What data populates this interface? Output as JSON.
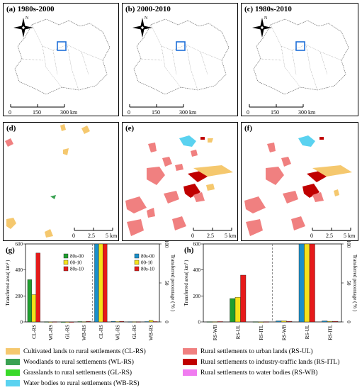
{
  "maps_top": [
    {
      "label": "(a) 1980s-2000",
      "north": "N",
      "scale": [
        "0",
        "150",
        "300 km"
      ],
      "show_compass": true
    },
    {
      "label": "(b) 2000-2010",
      "north": "N",
      "scale": [
        "0",
        "150",
        "300 km"
      ],
      "show_compass": true
    },
    {
      "label": "(c) 1980s-2010",
      "north": "N",
      "scale": [
        "0",
        "150",
        "300 km"
      ],
      "show_compass": true
    }
  ],
  "maps_mid": [
    {
      "label": "(d)",
      "scale": [
        "0",
        "2.5",
        "5 km"
      ]
    },
    {
      "label": "(e)",
      "scale": [
        "0",
        "2.5",
        "5 km"
      ]
    },
    {
      "label": "(f)",
      "scale": [
        "0",
        "2.5",
        "5 km"
      ]
    }
  ],
  "colors": {
    "cl_rs": "#F5C86E",
    "wl_rs": "#3AA152",
    "gl_rs": "#39D929",
    "wb_rs": "#5AD2F0",
    "rs_ul": "#F08080",
    "rs_itl": "#C00000",
    "rs_wb": "#F07CF0",
    "p1": "#1F9E2F",
    "p2": "#F5E21A",
    "p3": "#E61A1A",
    "q1": "#1A8FC9",
    "q2": "#F5E21A",
    "q3": "#E61A1A",
    "highlight_box": "#1E6FD9",
    "outline": "#555555"
  },
  "chart_data": [
    {
      "type": "bar",
      "panel_label": "(g)",
      "categories": [
        "CL-RS",
        "WL-RS",
        "GL-RS",
        "WB-RS",
        "CL-RS",
        "WL-RS",
        "GL-RS",
        "WB-RS"
      ],
      "series": [
        {
          "name": "80s-00",
          "values": [
            325,
            2,
            1,
            3,
            600,
            5,
            2,
            3
          ]
        },
        {
          "name": "00-10",
          "values": [
            210,
            1,
            1,
            2,
            600,
            3,
            2,
            12
          ]
        },
        {
          "name": "80s-10",
          "values": [
            530,
            2,
            1,
            4,
            600,
            5,
            2,
            3
          ]
        }
      ],
      "left_axis": {
        "label": "Transferred area( km² )",
        "ticks": [
          "0",
          "200",
          "400",
          "600"
        ],
        "ylim": [
          0,
          600
        ]
      },
      "right_axis": {
        "label": "Transferred percentage ( % )",
        "ticks": [
          "0",
          "50",
          "100"
        ],
        "ylim": [
          0,
          100
        ]
      },
      "legend_left": [
        "80s-00",
        "00-10",
        "80s-10"
      ],
      "legend_right": [
        "80s-00",
        "00-10",
        "80s-10"
      ]
    },
    {
      "type": "bar",
      "panel_label": "(h)",
      "categories": [
        "RS-WB",
        "RS-UL",
        "RS-ITL",
        "RS-WB",
        "RS-UL",
        "RS-ITL"
      ],
      "series": [
        {
          "name": "80s-00",
          "values": [
            2,
            180,
            2,
            8,
            600,
            8
          ]
        },
        {
          "name": "00-10",
          "values": [
            2,
            190,
            1,
            8,
            600,
            5
          ]
        },
        {
          "name": "80s-10",
          "values": [
            3,
            360,
            2,
            5,
            600,
            5
          ]
        }
      ],
      "left_axis": {
        "label": "Transferred area( km² )",
        "ticks": [
          "0",
          "200",
          "400",
          "600"
        ],
        "ylim": [
          0,
          600
        ]
      },
      "right_axis": {
        "label": "Transferred percentage ( % )",
        "ticks": [
          "0",
          "50",
          "100"
        ],
        "ylim": [
          0,
          100
        ]
      }
    }
  ],
  "legend": {
    "left": [
      {
        "key": "cl_rs",
        "label": "Cultivated lands to rural settlements (CL-RS)"
      },
      {
        "key": "wl_rs",
        "label": "Woodlands to rural settlements (WL-RS)"
      },
      {
        "key": "gl_rs",
        "label": "Grasslands to rural settlements (GL-RS)"
      },
      {
        "key": "wb_rs",
        "label": "Water bodies to rural settlements (WB-RS)"
      }
    ],
    "right": [
      {
        "key": "rs_ul",
        "label": "Rural settlements to urban lands (RS-UL)"
      },
      {
        "key": "rs_itl",
        "label": "Rural settlements to industry-traffic lands (RS-ITL)"
      },
      {
        "key": "rs_wb",
        "label": "Rural settlements to water bodies (RS-WB)"
      }
    ]
  }
}
